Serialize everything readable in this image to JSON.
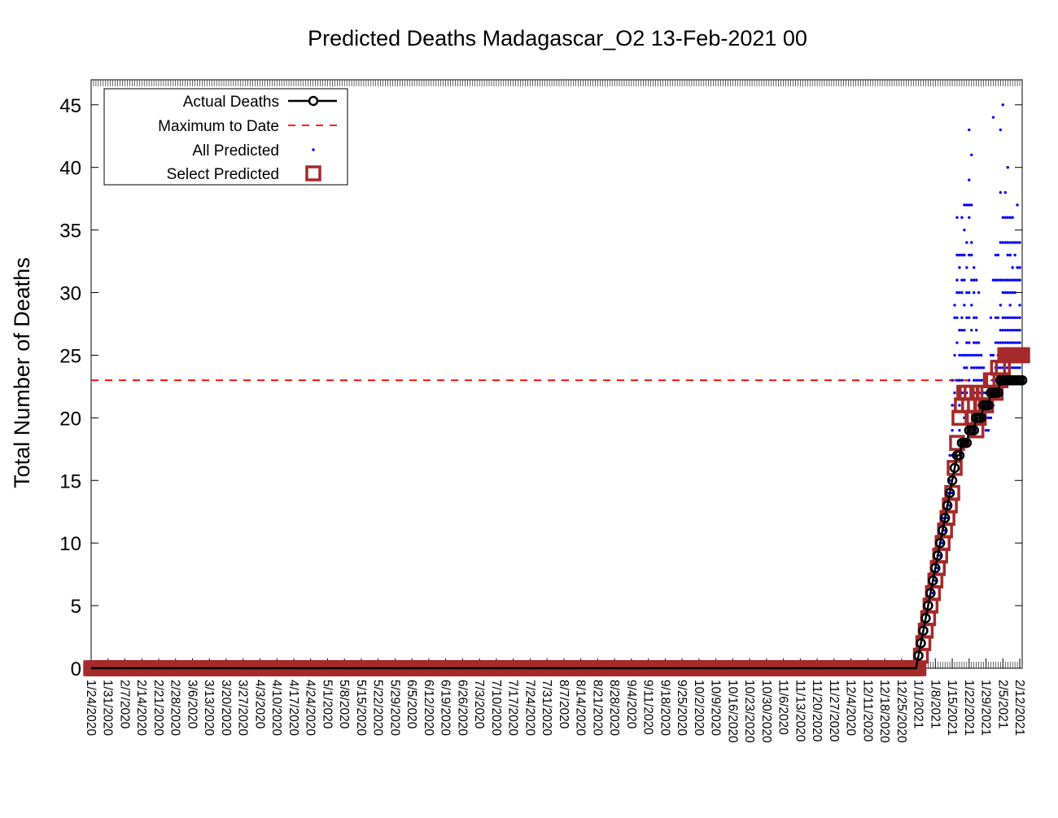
{
  "chart_data": {
    "type": "scatter",
    "title": "Predicted Deaths Madagascar_O2 13-Feb-2021 00",
    "ylabel": "Total Number of Deaths",
    "xlabel": "",
    "ylim": [
      0,
      47
    ],
    "y_ticks": [
      0,
      5,
      10,
      15,
      20,
      25,
      30,
      35,
      40,
      45
    ],
    "x_tick_labels": [
      "1/24/2020",
      "1/31/2020",
      "2/7/2020",
      "2/14/2020",
      "2/21/2020",
      "2/28/2020",
      "3/6/2020",
      "3/13/2020",
      "3/20/2020",
      "3/27/2020",
      "4/3/2020",
      "4/10/2020",
      "4/17/2020",
      "4/24/2020",
      "5/1/2020",
      "5/8/2020",
      "5/15/2020",
      "5/22/2020",
      "5/29/2020",
      "6/5/2020",
      "6/12/2020",
      "6/19/2020",
      "6/26/2020",
      "7/3/2020",
      "7/10/2020",
      "7/17/2020",
      "7/24/2020",
      "7/31/2020",
      "8/7/2020",
      "8/14/2020",
      "8/21/2020",
      "8/28/2020",
      "9/4/2020",
      "9/11/2020",
      "9/18/2020",
      "9/25/2020",
      "10/2/2020",
      "10/9/2020",
      "10/16/2020",
      "10/23/2020",
      "10/30/2020",
      "11/6/2020",
      "11/13/2020",
      "11/20/2020",
      "11/27/2020",
      "12/4/2020",
      "12/11/2020",
      "12/18/2020",
      "12/25/2020",
      "1/1/2021",
      "1/8/2021",
      "1/15/2021",
      "1/22/2021",
      "1/29/2021",
      "2/5/2021",
      "2/12/2021"
    ],
    "x_range": [
      "1/24/2020",
      "2/13/2021"
    ],
    "legend_position": "top-left",
    "grid": false,
    "maximum_to_date": 23,
    "series": [
      {
        "name": "Actual Deaths",
        "color": "#000000",
        "style": "line-with-circles"
      },
      {
        "name": "Maximum to Date",
        "color": "#ff0000",
        "style": "dashed"
      },
      {
        "name": "All Predicted",
        "color": "#0000ff",
        "style": "dots"
      },
      {
        "name": "Select Predicted",
        "color": "#a52a2a",
        "style": "open-squares"
      }
    ],
    "actual_deaths": {
      "zero_from": "1/24/2020",
      "zero_to": "12/31/2020",
      "x": [
        "1/1/2021",
        "1/2/2021",
        "1/3/2021",
        "1/4/2021",
        "1/5/2021",
        "1/6/2021",
        "1/7/2021",
        "1/8/2021",
        "1/9/2021",
        "1/10/2021",
        "1/11/2021",
        "1/12/2021",
        "1/13/2021",
        "1/14/2021",
        "1/15/2021",
        "1/16/2021",
        "1/17/2021",
        "1/18/2021",
        "1/19/2021",
        "1/20/2021",
        "1/21/2021",
        "1/22/2021",
        "1/23/2021",
        "1/24/2021",
        "1/25/2021",
        "1/26/2021",
        "1/27/2021",
        "1/28/2021",
        "1/29/2021",
        "1/30/2021",
        "1/31/2021",
        "2/1/2021",
        "2/2/2021",
        "2/3/2021",
        "2/4/2021",
        "2/5/2021",
        "2/6/2021",
        "2/7/2021",
        "2/8/2021",
        "2/9/2021",
        "2/10/2021",
        "2/11/2021",
        "2/12/2021",
        "2/13/2021"
      ],
      "y": [
        1,
        2,
        3,
        4,
        5,
        6,
        7,
        8,
        9,
        10,
        11,
        12,
        13,
        14,
        15,
        16,
        17,
        17,
        18,
        18,
        18,
        19,
        19,
        19,
        20,
        20,
        20,
        21,
        21,
        21,
        22,
        22,
        22,
        22,
        23,
        23,
        23,
        23,
        23,
        23,
        23,
        23,
        23,
        23
      ]
    },
    "select_predicted": {
      "zero_from": "1/24/2020",
      "zero_to": "12/31/2020",
      "x": [
        "1/1/2021",
        "1/2/2021",
        "1/3/2021",
        "1/4/2021",
        "1/5/2021",
        "1/6/2021",
        "1/7/2021",
        "1/8/2021",
        "1/9/2021",
        "1/10/2021",
        "1/11/2021",
        "1/12/2021",
        "1/13/2021",
        "1/14/2021",
        "1/15/2021",
        "1/16/2021",
        "1/17/2021",
        "1/18/2021",
        "1/19/2021",
        "1/20/2021",
        "1/21/2021",
        "1/22/2021",
        "1/23/2021",
        "1/24/2021",
        "1/25/2021",
        "1/26/2021",
        "1/27/2021",
        "1/28/2021",
        "1/29/2021",
        "1/30/2021",
        "1/31/2021",
        "2/1/2021",
        "2/2/2021",
        "2/3/2021",
        "2/4/2021",
        "2/5/2021",
        "2/6/2021",
        "2/7/2021",
        "2/8/2021",
        "2/9/2021",
        "2/10/2021",
        "2/11/2021",
        "2/12/2021",
        "2/13/2021"
      ],
      "y": [
        0,
        1,
        2,
        3,
        4,
        5,
        6,
        7,
        8,
        9,
        10,
        11,
        12,
        13,
        14,
        16,
        18,
        20,
        21,
        22,
        22,
        21,
        22,
        20,
        19,
        20,
        21,
        22,
        21,
        22,
        23,
        23,
        22,
        24,
        23,
        24,
        25,
        25,
        25,
        25,
        25,
        25,
        25,
        25
      ]
    },
    "all_predicted": {
      "x": [
        "1/7/2021",
        "1/8/2021",
        "1/8/2021",
        "1/9/2021",
        "1/9/2021",
        "1/10/2021",
        "1/10/2021",
        "1/11/2021",
        "1/11/2021",
        "1/11/2021",
        "1/12/2021",
        "1/12/2021",
        "1/13/2021",
        "1/13/2021",
        "1/13/2021",
        "1/14/2021",
        "1/14/2021",
        "1/14/2021",
        "1/14/2021",
        "1/15/2021",
        "1/15/2021",
        "1/15/2021",
        "1/15/2021",
        "1/15/2021",
        "1/16/2021",
        "1/16/2021",
        "1/16/2021",
        "1/16/2021",
        "1/16/2021",
        "1/16/2021",
        "1/17/2021",
        "1/17/2021",
        "1/17/2021",
        "1/17/2021",
        "1/17/2021",
        "1/17/2021",
        "1/17/2021",
        "1/18/2021",
        "1/18/2021",
        "1/18/2021",
        "1/18/2021",
        "1/18/2021",
        "1/18/2021",
        "1/18/2021",
        "1/18/2021",
        "1/19/2021",
        "1/19/2021",
        "1/19/2021",
        "1/19/2021",
        "1/19/2021",
        "1/19/2021",
        "1/19/2021",
        "1/19/2021",
        "1/19/2021",
        "1/20/2021",
        "1/20/2021",
        "1/20/2021",
        "1/20/2021",
        "1/20/2021",
        "1/20/2021",
        "1/20/2021",
        "1/20/2021",
        "1/20/2021",
        "1/20/2021",
        "1/21/2021",
        "1/21/2021",
        "1/21/2021",
        "1/21/2021",
        "1/21/2021",
        "1/21/2021",
        "1/21/2021",
        "1/21/2021",
        "1/21/2021",
        "1/22/2021",
        "1/22/2021",
        "1/22/2021",
        "1/22/2021",
        "1/22/2021",
        "1/22/2021",
        "1/22/2021",
        "1/22/2021",
        "1/22/2021",
        "1/22/2021",
        "1/23/2021",
        "1/23/2021",
        "1/23/2021",
        "1/23/2021",
        "1/23/2021",
        "1/23/2021",
        "1/23/2021",
        "1/23/2021",
        "1/23/2021",
        "1/23/2021",
        "1/24/2021",
        "1/24/2021",
        "1/24/2021",
        "1/24/2021",
        "1/24/2021",
        "1/24/2021",
        "1/24/2021",
        "1/24/2021",
        "1/24/2021",
        "1/25/2021",
        "1/25/2021",
        "1/25/2021",
        "1/25/2021",
        "1/25/2021",
        "1/25/2021",
        "1/25/2021",
        "1/25/2021",
        "1/26/2021",
        "1/26/2021",
        "1/26/2021",
        "1/26/2021",
        "1/26/2021",
        "1/26/2021",
        "1/26/2021",
        "1/27/2021",
        "1/27/2021",
        "1/27/2021",
        "1/27/2021",
        "1/27/2021",
        "1/27/2021",
        "1/28/2021",
        "1/28/2021",
        "1/28/2021",
        "1/28/2021",
        "1/28/2021",
        "1/29/2021",
        "1/29/2021",
        "1/29/2021",
        "1/29/2021",
        "1/29/2021",
        "1/30/2021",
        "1/30/2021",
        "1/30/2021",
        "1/30/2021",
        "1/31/2021",
        "1/31/2021",
        "1/31/2021",
        "1/31/2021",
        "1/31/2021",
        "2/1/2021",
        "2/1/2021",
        "2/1/2021",
        "2/1/2021",
        "2/1/2021",
        "2/1/2021",
        "2/2/2021",
        "2/2/2021",
        "2/2/2021",
        "2/2/2021",
        "2/2/2021",
        "2/2/2021",
        "2/2/2021",
        "2/3/2021",
        "2/3/2021",
        "2/3/2021",
        "2/3/2021",
        "2/3/2021",
        "2/3/2021",
        "2/3/2021",
        "2/3/2021",
        "2/4/2021",
        "2/4/2021",
        "2/4/2021",
        "2/4/2021",
        "2/4/2021",
        "2/4/2021",
        "2/4/2021",
        "2/4/2021",
        "2/4/2021",
        "2/4/2021",
        "2/5/2021",
        "2/5/2021",
        "2/5/2021",
        "2/5/2021",
        "2/5/2021",
        "2/5/2021",
        "2/5/2021",
        "2/5/2021",
        "2/5/2021",
        "2/5/2021",
        "2/5/2021",
        "2/6/2021",
        "2/6/2021",
        "2/6/2021",
        "2/6/2021",
        "2/6/2021",
        "2/6/2021",
        "2/6/2021",
        "2/6/2021",
        "2/6/2021",
        "2/6/2021",
        "2/6/2021",
        "2/7/2021",
        "2/7/2021",
        "2/7/2021",
        "2/7/2021",
        "2/7/2021",
        "2/7/2021",
        "2/7/2021",
        "2/7/2021",
        "2/7/2021",
        "2/7/2021",
        "2/7/2021",
        "2/8/2021",
        "2/8/2021",
        "2/8/2021",
        "2/8/2021",
        "2/8/2021",
        "2/8/2021",
        "2/8/2021",
        "2/8/2021",
        "2/8/2021",
        "2/8/2021",
        "2/8/2021",
        "2/9/2021",
        "2/9/2021",
        "2/9/2021",
        "2/9/2021",
        "2/9/2021",
        "2/9/2021",
        "2/9/2021",
        "2/9/2021",
        "2/9/2021",
        "2/9/2021",
        "2/10/2021",
        "2/10/2021",
        "2/10/2021",
        "2/10/2021",
        "2/10/2021",
        "2/10/2021",
        "2/10/2021",
        "2/10/2021",
        "2/10/2021",
        "2/10/2021",
        "2/11/2021",
        "2/11/2021",
        "2/11/2021",
        "2/11/2021",
        "2/11/2021",
        "2/11/2021",
        "2/11/2021",
        "2/11/2021",
        "2/11/2021",
        "2/11/2021",
        "2/12/2021",
        "2/12/2021",
        "2/12/2021",
        "2/12/2021",
        "2/12/2021",
        "2/12/2021",
        "2/12/2021",
        "2/12/2021",
        "2/12/2021"
      ],
      "y": [
        6,
        7,
        8,
        8,
        9,
        9,
        10,
        10,
        11,
        12,
        11,
        12,
        12,
        13,
        14,
        13,
        14,
        15,
        17,
        14,
        17,
        19,
        21,
        23,
        17,
        21,
        22,
        25,
        28,
        29,
        23,
        26,
        28,
        30,
        31,
        33,
        36,
        19,
        21,
        23,
        25,
        27,
        30,
        32,
        33,
        22,
        23,
        25,
        27,
        28,
        30,
        31,
        33,
        36,
        20,
        22,
        24,
        25,
        27,
        29,
        31,
        33,
        35,
        37,
        22,
        24,
        25,
        26,
        28,
        30,
        32,
        34,
        37,
        23,
        25,
        26,
        28,
        30,
        33,
        36,
        37,
        39,
        43,
        22,
        24,
        25,
        27,
        29,
        31,
        33,
        34,
        37,
        41,
        22,
        23,
        24,
        25,
        26,
        28,
        30,
        31,
        32,
        22,
        23,
        24,
        25,
        26,
        27,
        28,
        31,
        21,
        22,
        23,
        24,
        25,
        26,
        30,
        20,
        21,
        22,
        23,
        24,
        25,
        20,
        21,
        22,
        23,
        24,
        19,
        20,
        21,
        22,
        23,
        19,
        20,
        21,
        22,
        20,
        21,
        22,
        25,
        28,
        21,
        22,
        23,
        25,
        31,
        44,
        22,
        23,
        24,
        26,
        28,
        31,
        33,
        22,
        23,
        24,
        25,
        26,
        28,
        31,
        33,
        22,
        24,
        25,
        26,
        27,
        29,
        31,
        34,
        38,
        43,
        23,
        24,
        25,
        26,
        27,
        28,
        30,
        31,
        34,
        36,
        45,
        23,
        24,
        25,
        26,
        27,
        28,
        30,
        31,
        34,
        36,
        38,
        24,
        25,
        26,
        27,
        28,
        30,
        31,
        33,
        34,
        36,
        40,
        24,
        25,
        26,
        27,
        28,
        29,
        30,
        31,
        33,
        34,
        36,
        24,
        25,
        26,
        27,
        28,
        30,
        31,
        32,
        34,
        36,
        23,
        24,
        25,
        26,
        27,
        28,
        30,
        31,
        33,
        34,
        23,
        24,
        25,
        26,
        27,
        28,
        31,
        32,
        34,
        37,
        24,
        25,
        26,
        27,
        28,
        29,
        31,
        32,
        34
      ]
    }
  }
}
